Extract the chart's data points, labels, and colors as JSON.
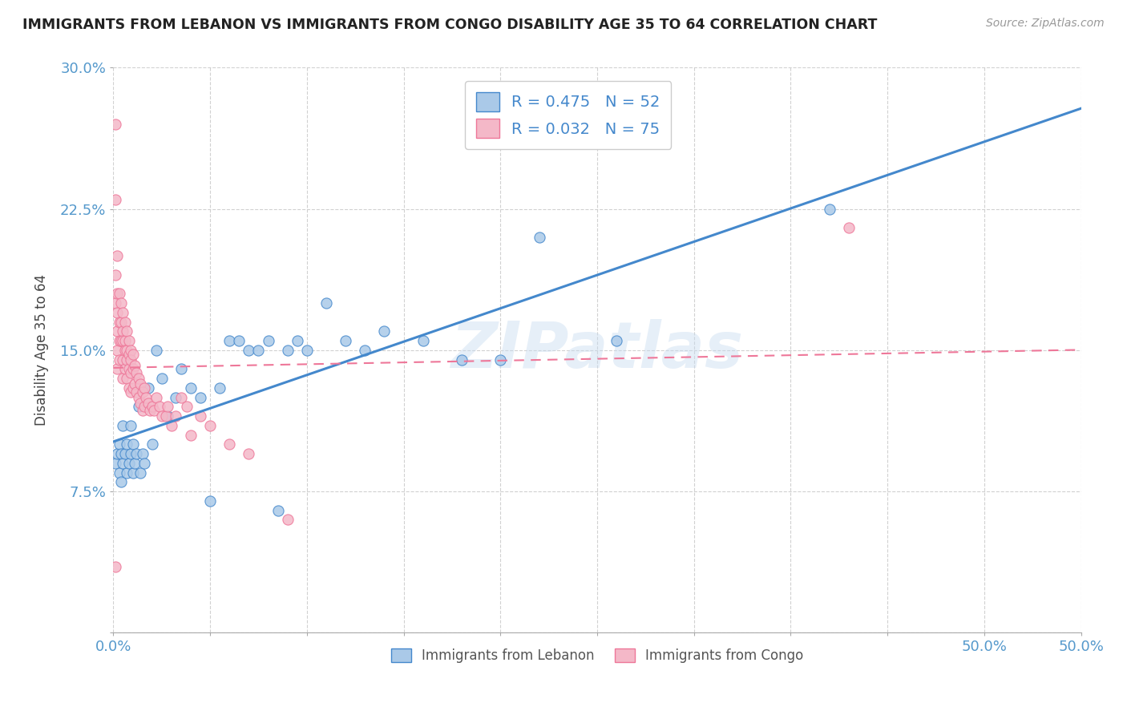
{
  "title": "IMMIGRANTS FROM LEBANON VS IMMIGRANTS FROM CONGO DISABILITY AGE 35 TO 64 CORRELATION CHART",
  "source": "Source: ZipAtlas.com",
  "ylabel": "Disability Age 35 to 64",
  "xlim": [
    0.0,
    0.5
  ],
  "ylim": [
    0.0,
    0.3
  ],
  "xtick_positions": [
    0.0,
    0.05,
    0.1,
    0.15,
    0.2,
    0.25,
    0.3,
    0.35,
    0.4,
    0.45,
    0.5
  ],
  "xticklabels_shown": {
    "0.0": "0.0%",
    "0.5": "50.0%"
  },
  "yticks": [
    0.0,
    0.075,
    0.15,
    0.225,
    0.3
  ],
  "yticklabels": [
    "",
    "7.5%",
    "15.0%",
    "22.5%",
    "30.0%"
  ],
  "legend_label1": "Immigrants from Lebanon",
  "legend_label2": "Immigrants from Congo",
  "R1": 0.475,
  "N1": 52,
  "R2": 0.032,
  "N2": 75,
  "color_lebanon": "#aac9e8",
  "color_congo": "#f4b8c8",
  "line_color_lebanon": "#4488cc",
  "line_color_congo": "#ee7799",
  "background_color": "#ffffff",
  "watermark": "ZIPatlas",
  "lebanon_x": [
    0.001,
    0.002,
    0.003,
    0.003,
    0.004,
    0.004,
    0.005,
    0.005,
    0.006,
    0.007,
    0.007,
    0.008,
    0.009,
    0.009,
    0.01,
    0.01,
    0.011,
    0.012,
    0.013,
    0.014,
    0.015,
    0.016,
    0.018,
    0.02,
    0.022,
    0.025,
    0.028,
    0.032,
    0.035,
    0.04,
    0.045,
    0.05,
    0.055,
    0.06,
    0.065,
    0.07,
    0.075,
    0.08,
    0.085,
    0.09,
    0.095,
    0.1,
    0.11,
    0.12,
    0.13,
    0.14,
    0.16,
    0.18,
    0.2,
    0.22,
    0.26,
    0.37
  ],
  "lebanon_y": [
    0.09,
    0.095,
    0.085,
    0.1,
    0.08,
    0.095,
    0.09,
    0.11,
    0.095,
    0.085,
    0.1,
    0.09,
    0.095,
    0.11,
    0.085,
    0.1,
    0.09,
    0.095,
    0.12,
    0.085,
    0.095,
    0.09,
    0.13,
    0.1,
    0.15,
    0.135,
    0.115,
    0.125,
    0.14,
    0.13,
    0.125,
    0.07,
    0.13,
    0.155,
    0.155,
    0.15,
    0.15,
    0.155,
    0.065,
    0.15,
    0.155,
    0.15,
    0.175,
    0.155,
    0.15,
    0.16,
    0.155,
    0.145,
    0.145,
    0.21,
    0.155,
    0.225
  ],
  "congo_x": [
    0.001,
    0.001,
    0.001,
    0.001,
    0.001,
    0.002,
    0.002,
    0.002,
    0.002,
    0.002,
    0.002,
    0.003,
    0.003,
    0.003,
    0.003,
    0.004,
    0.004,
    0.004,
    0.005,
    0.005,
    0.005,
    0.005,
    0.005,
    0.006,
    0.006,
    0.006,
    0.006,
    0.007,
    0.007,
    0.007,
    0.007,
    0.008,
    0.008,
    0.008,
    0.008,
    0.009,
    0.009,
    0.009,
    0.009,
    0.01,
    0.01,
    0.01,
    0.011,
    0.011,
    0.012,
    0.012,
    0.013,
    0.013,
    0.014,
    0.014,
    0.015,
    0.015,
    0.016,
    0.016,
    0.017,
    0.018,
    0.019,
    0.02,
    0.021,
    0.022,
    0.024,
    0.025,
    0.027,
    0.028,
    0.03,
    0.032,
    0.035,
    0.038,
    0.04,
    0.045,
    0.05,
    0.06,
    0.07,
    0.09,
    0.38
  ],
  "congo_y": [
    0.27,
    0.23,
    0.19,
    0.175,
    0.035,
    0.2,
    0.18,
    0.17,
    0.16,
    0.15,
    0.14,
    0.18,
    0.165,
    0.155,
    0.145,
    0.175,
    0.165,
    0.155,
    0.17,
    0.16,
    0.155,
    0.145,
    0.135,
    0.165,
    0.155,
    0.15,
    0.14,
    0.16,
    0.15,
    0.145,
    0.135,
    0.155,
    0.148,
    0.14,
    0.13,
    0.15,
    0.145,
    0.138,
    0.128,
    0.148,
    0.14,
    0.13,
    0.142,
    0.132,
    0.138,
    0.128,
    0.135,
    0.125,
    0.132,
    0.122,
    0.128,
    0.118,
    0.13,
    0.12,
    0.125,
    0.122,
    0.118,
    0.12,
    0.118,
    0.125,
    0.12,
    0.115,
    0.115,
    0.12,
    0.11,
    0.115,
    0.125,
    0.12,
    0.105,
    0.115,
    0.11,
    0.1,
    0.095,
    0.06,
    0.215
  ]
}
